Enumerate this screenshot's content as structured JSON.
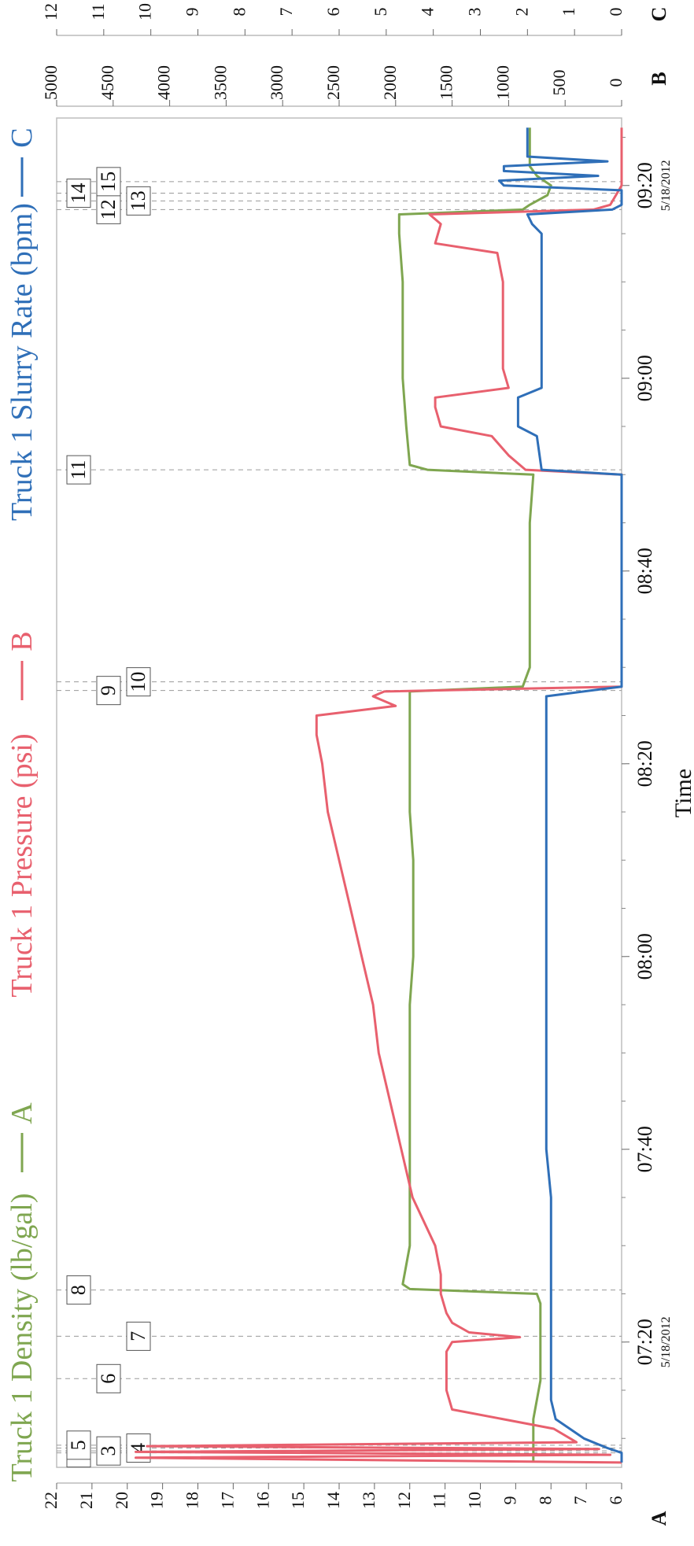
{
  "chart_data": {
    "type": "line",
    "legend": [
      {
        "letter": "A",
        "label": "Truck 1 Density (lb/gal)",
        "color": "#7fa650"
      },
      {
        "letter": "B",
        "label": "Truck 1 Pressure (psi)",
        "color": "#e8606e"
      },
      {
        "letter": "C",
        "label": "Truck 1 Slurry Rate (bpm)",
        "color": "#2f6fb8"
      }
    ],
    "x_axis": {
      "label": "Time",
      "range_min": [
        427,
        567
      ],
      "ticks": [
        {
          "label": "07:20",
          "sublabel": "5/18/2012",
          "min": 440
        },
        {
          "label": "07:40",
          "sublabel": "",
          "min": 460
        },
        {
          "label": "08:00",
          "sublabel": "",
          "min": 480
        },
        {
          "label": "08:20",
          "sublabel": "",
          "min": 500
        },
        {
          "label": "08:40",
          "sublabel": "",
          "min": 520
        },
        {
          "label": "09:00",
          "sublabel": "",
          "min": 540
        },
        {
          "label": "09:20",
          "sublabel": "5/18/2012",
          "min": 560
        }
      ]
    },
    "axes": [
      {
        "letter": "A",
        "min": 6,
        "max": 22,
        "step": 1
      },
      {
        "letter": "B",
        "min": 0,
        "max": 5000,
        "step": 500
      },
      {
        "letter": "C",
        "min": 0,
        "max": 12,
        "step": 1
      }
    ],
    "events": [
      {
        "id": "2",
        "min": 428.5
      },
      {
        "id": "3",
        "min": 428.7
      },
      {
        "id": "4",
        "min": 429.0
      },
      {
        "id": "5",
        "min": 429.3
      },
      {
        "id": "6",
        "min": 436.2
      },
      {
        "id": "7",
        "min": 440.6
      },
      {
        "id": "8",
        "min": 445.4
      },
      {
        "id": "9",
        "min": 507.6
      },
      {
        "id": "10",
        "min": 508.5
      },
      {
        "id": "11",
        "min": 530.5
      },
      {
        "id": "12",
        "min": 557.5
      },
      {
        "id": "13",
        "min": 558.4
      },
      {
        "id": "14",
        "min": 559.2
      },
      {
        "id": "15",
        "min": 560.4
      }
    ],
    "series": [
      {
        "name": "Truck 1 Density (lb/gal)",
        "axis": "A",
        "color": "#7fa650",
        "points": [
          [
            427.5,
            8.5
          ],
          [
            428.5,
            8.5
          ],
          [
            429,
            8.5
          ],
          [
            430,
            8.5
          ],
          [
            432,
            8.5
          ],
          [
            434,
            8.4
          ],
          [
            436,
            8.3
          ],
          [
            438,
            8.3
          ],
          [
            440,
            8.3
          ],
          [
            442,
            8.3
          ],
          [
            444,
            8.3
          ],
          [
            445,
            8.4
          ],
          [
            445.5,
            12.0
          ],
          [
            446,
            12.2
          ],
          [
            448,
            12.1
          ],
          [
            450,
            12.0
          ],
          [
            455,
            12.0
          ],
          [
            460,
            12.0
          ],
          [
            465,
            12.0
          ],
          [
            470,
            12.0
          ],
          [
            475,
            12.0
          ],
          [
            480,
            11.9
          ],
          [
            485,
            11.9
          ],
          [
            490,
            11.9
          ],
          [
            495,
            12.0
          ],
          [
            500,
            12.0
          ],
          [
            505,
            12.0
          ],
          [
            507.5,
            12.0
          ],
          [
            508,
            8.8
          ],
          [
            510,
            8.6
          ],
          [
            515,
            8.6
          ],
          [
            520,
            8.6
          ],
          [
            525,
            8.6
          ],
          [
            530,
            8.5
          ],
          [
            530.5,
            11.5
          ],
          [
            531,
            12.0
          ],
          [
            535,
            12.1
          ],
          [
            540,
            12.2
          ],
          [
            545,
            12.2
          ],
          [
            550,
            12.2
          ],
          [
            555,
            12.3
          ],
          [
            557,
            12.3
          ],
          [
            557.5,
            8.8
          ],
          [
            558,
            8.6
          ],
          [
            559,
            8.1
          ],
          [
            560,
            8.0
          ],
          [
            561,
            8.4
          ],
          [
            562,
            8.6
          ],
          [
            563,
            8.6
          ],
          [
            564,
            8.6
          ],
          [
            565,
            8.6
          ],
          [
            566,
            8.6
          ]
        ]
      },
      {
        "name": "Truck 1 Pressure (psi)",
        "axis": "B",
        "color": "#e8606e",
        "points": [
          [
            427.5,
            0
          ],
          [
            428.0,
            4300
          ],
          [
            428.3,
            100
          ],
          [
            428.6,
            4300
          ],
          [
            428.9,
            200
          ],
          [
            429.2,
            4200
          ],
          [
            429.6,
            400
          ],
          [
            431,
            600
          ],
          [
            433,
            1500
          ],
          [
            435,
            1550
          ],
          [
            437,
            1550
          ],
          [
            439,
            1550
          ],
          [
            440,
            1500
          ],
          [
            440.5,
            900
          ],
          [
            441,
            1350
          ],
          [
            442,
            1500
          ],
          [
            443,
            1550
          ],
          [
            445,
            1600
          ],
          [
            447,
            1600
          ],
          [
            450,
            1650
          ],
          [
            455,
            1850
          ],
          [
            460,
            1950
          ],
          [
            465,
            2050
          ],
          [
            470,
            2150
          ],
          [
            475,
            2200
          ],
          [
            480,
            2300
          ],
          [
            485,
            2400
          ],
          [
            490,
            2500
          ],
          [
            495,
            2600
          ],
          [
            500,
            2650
          ],
          [
            503,
            2700
          ],
          [
            505,
            2700
          ],
          [
            506,
            2000
          ],
          [
            507,
            2200
          ],
          [
            507.5,
            2100
          ],
          [
            508,
            0
          ],
          [
            510,
            0
          ],
          [
            515,
            0
          ],
          [
            520,
            0
          ],
          [
            525,
            0
          ],
          [
            530,
            0
          ],
          [
            530.5,
            850
          ],
          [
            532,
            1000
          ],
          [
            534,
            1150
          ],
          [
            535,
            1600
          ],
          [
            537,
            1650
          ],
          [
            538,
            1650
          ],
          [
            539,
            1000
          ],
          [
            541,
            1050
          ],
          [
            545,
            1050
          ],
          [
            550,
            1050
          ],
          [
            553,
            1100
          ],
          [
            554,
            1650
          ],
          [
            556,
            1600
          ],
          [
            557,
            1700
          ],
          [
            557.5,
            250
          ],
          [
            558,
            100
          ],
          [
            560,
            0
          ],
          [
            562,
            0
          ],
          [
            564,
            0
          ],
          [
            566,
            0
          ]
        ]
      },
      {
        "name": "Truck 1 Slurry Rate (bpm)",
        "axis": "C",
        "color": "#2f6fb8",
        "points": [
          [
            427.5,
            0
          ],
          [
            428.5,
            0
          ],
          [
            429,
            0.3
          ],
          [
            430,
            0.8
          ],
          [
            432,
            1.4
          ],
          [
            434,
            1.5
          ],
          [
            436,
            1.5
          ],
          [
            440,
            1.5
          ],
          [
            445,
            1.5
          ],
          [
            450,
            1.5
          ],
          [
            455,
            1.5
          ],
          [
            460,
            1.6
          ],
          [
            465,
            1.6
          ],
          [
            470,
            1.6
          ],
          [
            475,
            1.6
          ],
          [
            480,
            1.6
          ],
          [
            485,
            1.6
          ],
          [
            490,
            1.6
          ],
          [
            495,
            1.6
          ],
          [
            500,
            1.6
          ],
          [
            505,
            1.6
          ],
          [
            507,
            1.6
          ],
          [
            508,
            0
          ],
          [
            510,
            0
          ],
          [
            515,
            0
          ],
          [
            520,
            0
          ],
          [
            525,
            0
          ],
          [
            530,
            0
          ],
          [
            530.5,
            1.7
          ],
          [
            534,
            1.8
          ],
          [
            535,
            2.2
          ],
          [
            538,
            2.2
          ],
          [
            539,
            1.7
          ],
          [
            545,
            1.7
          ],
          [
            550,
            1.7
          ],
          [
            555,
            1.7
          ],
          [
            556,
            1.9
          ],
          [
            557,
            2.0
          ],
          [
            557.5,
            0.2
          ],
          [
            558,
            0
          ],
          [
            559.5,
            0
          ],
          [
            560,
            2.5
          ],
          [
            560.5,
            2.6
          ],
          [
            561,
            0.5
          ],
          [
            561.5,
            2.5
          ],
          [
            562,
            2.5
          ],
          [
            562.5,
            0.3
          ],
          [
            563,
            2.0
          ],
          [
            564,
            2.0
          ],
          [
            565,
            2.0
          ],
          [
            566,
            2.0
          ]
        ]
      }
    ]
  }
}
